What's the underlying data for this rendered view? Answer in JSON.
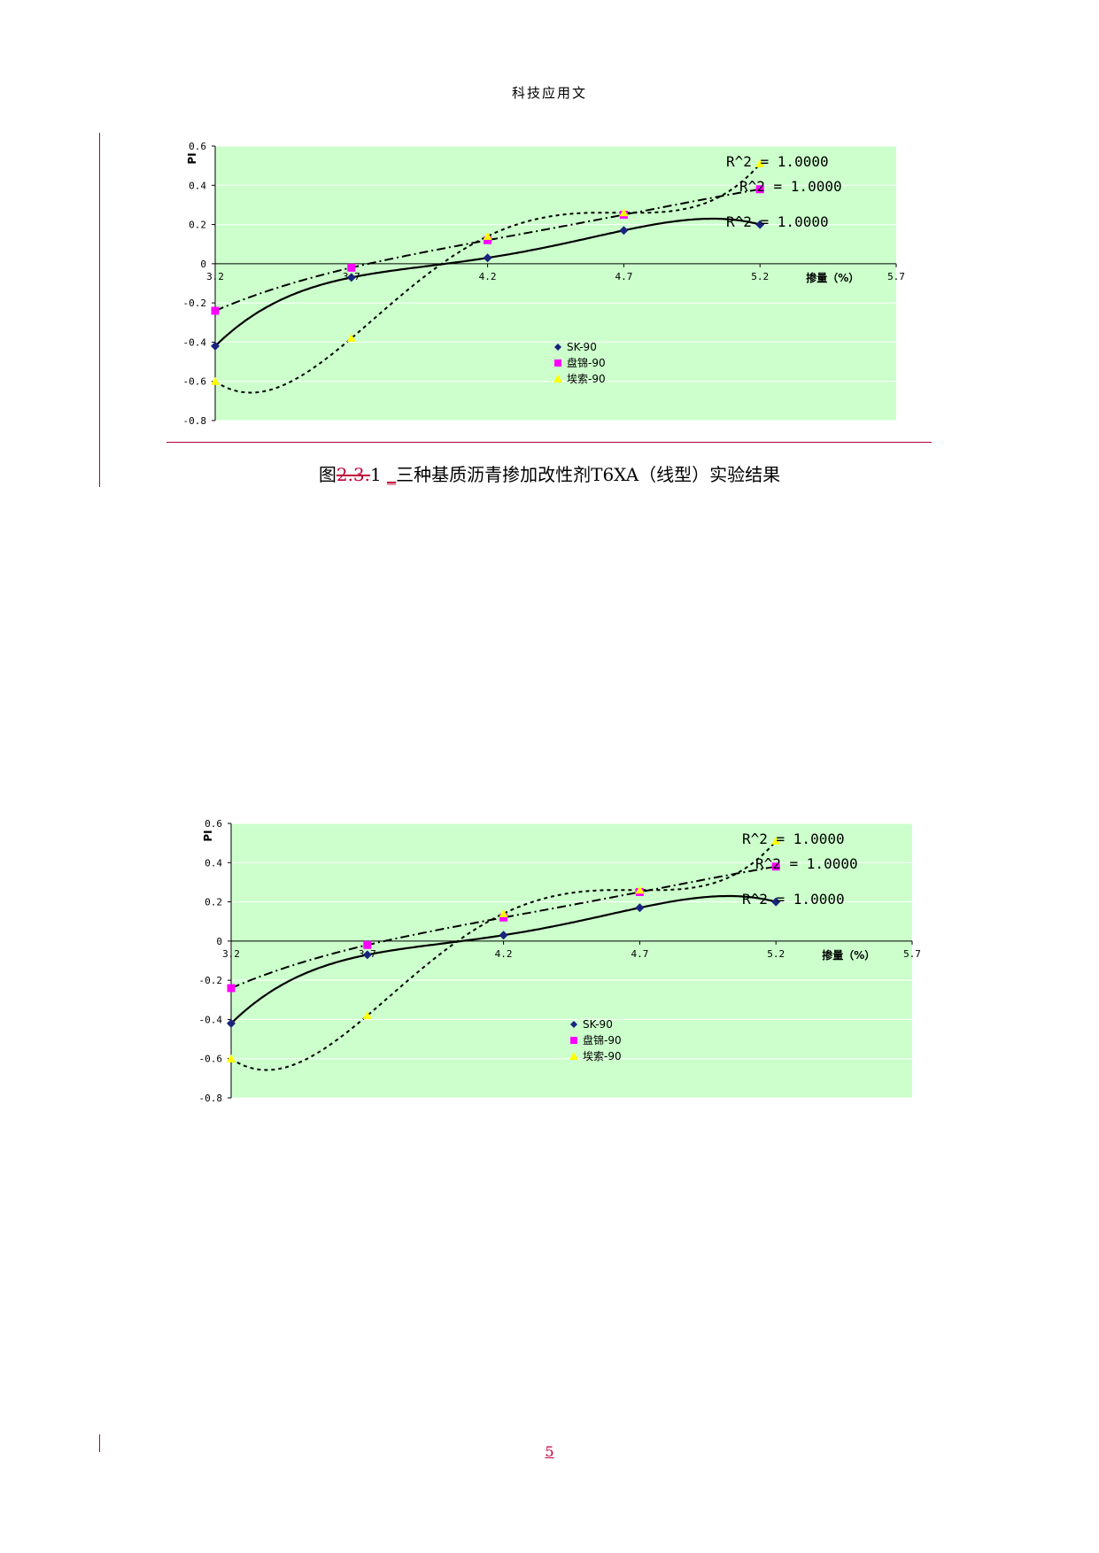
{
  "header": {
    "title": "科技应用文"
  },
  "caption": {
    "prefix": "图",
    "deleted": "2.3.",
    "number": "1",
    "inserted": "_",
    "text": "三种基质沥青掺加改性剂T6XA（线型）实验结果"
  },
  "page_number": "5",
  "colors": {
    "plot_bg": "#ccffcc",
    "sk": "#1a237e",
    "panjin": "#ff00ff",
    "aisuo": "#ffff00",
    "revision": "#c0003a"
  },
  "chart_data": [
    {
      "type": "scatter",
      "title": "",
      "xlabel": "掺量（%）",
      "ylabel": "PI",
      "xlim": [
        3.2,
        5.7
      ],
      "ylim": [
        -0.8,
        0.6
      ],
      "x_ticks": [
        "3.2",
        "3.7",
        "4.2",
        "4.7",
        "5.2",
        "5.7"
      ],
      "y_ticks": [
        "0.6",
        "0.4",
        "0.2",
        "0",
        "-0.2",
        "-0.4",
        "-0.6",
        "-0.8"
      ],
      "grid": true,
      "legend_position": "bottom-center",
      "series": [
        {
          "name": "SK-90",
          "marker": "diamond",
          "x": [
            3.2,
            3.7,
            4.2,
            4.7,
            5.2
          ],
          "y": [
            -0.42,
            -0.07,
            0.03,
            0.17,
            0.2
          ],
          "trend": "R^2 = 1.0000"
        },
        {
          "name": "盘锦-90",
          "marker": "square",
          "x": [
            3.2,
            3.7,
            4.2,
            4.7,
            5.2
          ],
          "y": [
            -0.24,
            -0.02,
            0.12,
            0.25,
            0.38
          ],
          "trend": "R^2 = 1.0000"
        },
        {
          "name": "埃索-90",
          "marker": "triangle",
          "x": [
            3.2,
            3.7,
            4.2,
            4.7,
            5.2
          ],
          "y": [
            -0.6,
            -0.38,
            0.14,
            0.26,
            0.51
          ],
          "trend": "R^2 = 1.0000"
        }
      ]
    },
    {
      "type": "scatter",
      "title": "",
      "xlabel": "掺量（%）",
      "ylabel": "PI",
      "xlim": [
        3.2,
        5.7
      ],
      "ylim": [
        -0.8,
        0.6
      ],
      "x_ticks": [
        "3.2",
        "3.7",
        "4.2",
        "4.7",
        "5.2",
        "5.7"
      ],
      "y_ticks": [
        "0.6",
        "0.4",
        "0.2",
        "0",
        "-0.2",
        "-0.4",
        "-0.6",
        "-0.8"
      ],
      "grid": true,
      "legend_position": "bottom-center",
      "series": [
        {
          "name": "SK-90",
          "marker": "diamond",
          "x": [
            3.2,
            3.7,
            4.2,
            4.7,
            5.2
          ],
          "y": [
            -0.42,
            -0.07,
            0.03,
            0.17,
            0.2
          ],
          "trend": "R^2 = 1.0000"
        },
        {
          "name": "盘锦-90",
          "marker": "square",
          "x": [
            3.2,
            3.7,
            4.2,
            4.7,
            5.2
          ],
          "y": [
            -0.24,
            -0.02,
            0.12,
            0.25,
            0.38
          ],
          "trend": "R^2 = 1.0000"
        },
        {
          "name": "埃索-90",
          "marker": "triangle",
          "x": [
            3.2,
            3.7,
            4.2,
            4.7,
            5.2
          ],
          "y": [
            -0.6,
            -0.38,
            0.14,
            0.26,
            0.51
          ],
          "trend": "R^2 = 1.0000"
        }
      ]
    }
  ]
}
